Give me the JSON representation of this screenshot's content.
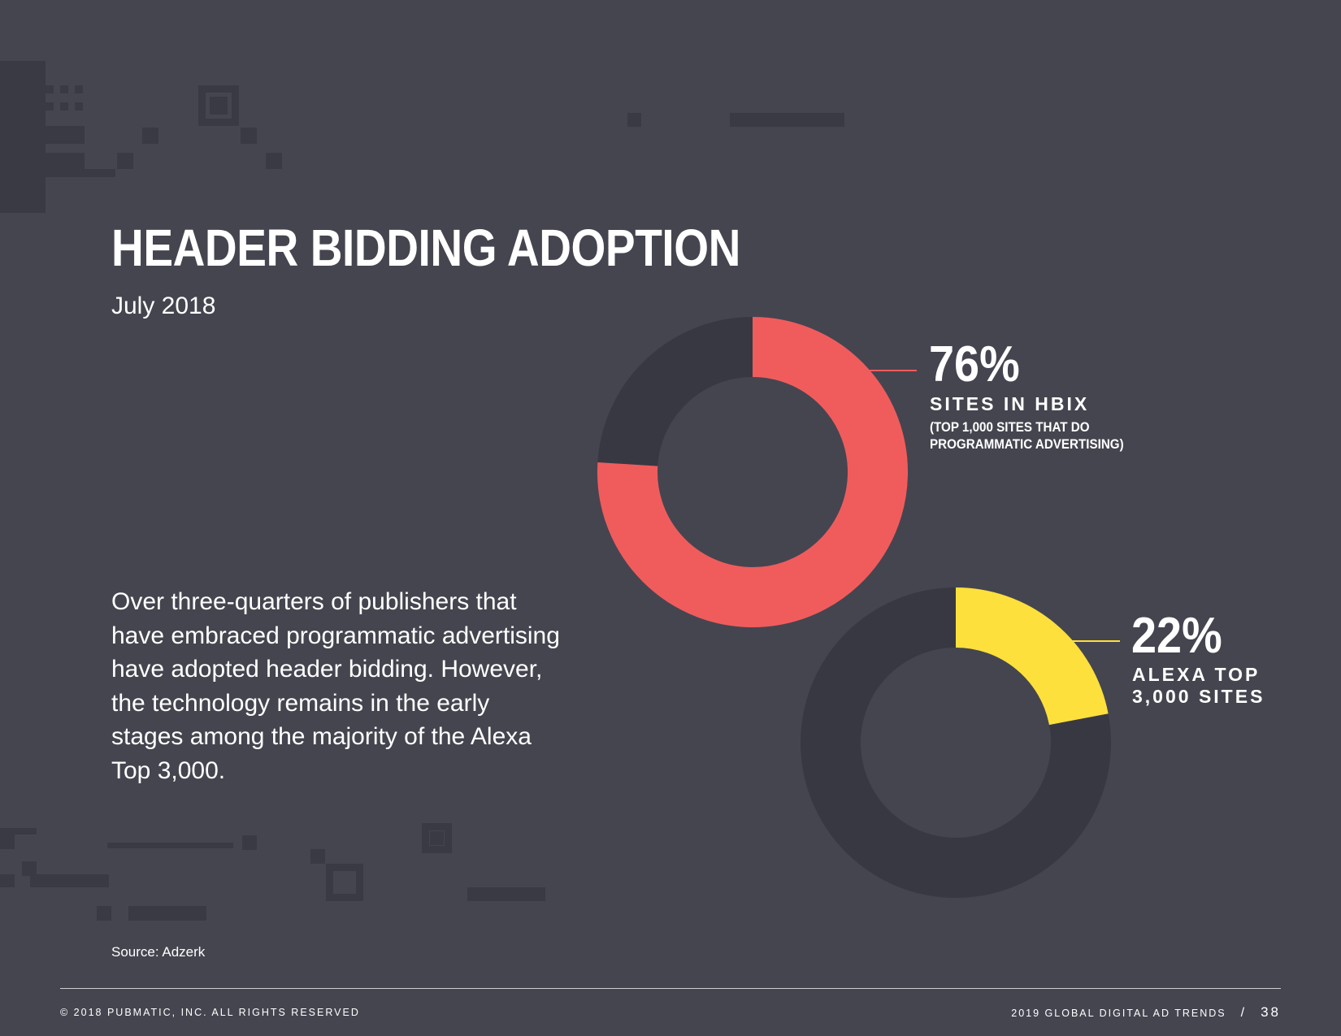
{
  "header": {
    "title": "HEADER BIDDING ADOPTION",
    "subtitle": "July 2018"
  },
  "body": {
    "paragraph": "Over three-quarters of publishers that have embraced programmatic advertising have adopted header bidding. However, the technology remains in the early stages among the majority of the Alexa Top 3,000."
  },
  "source": "Source: Adzerk",
  "footer": {
    "copyright": "© 2018 PUBMATIC, INC. ALL RIGHTS RESERVED",
    "report": "2019 GLOBAL DIGITAL AD TRENDS",
    "separator": "/",
    "page": "38"
  },
  "colors": {
    "background": "#454550",
    "track": "#383843",
    "red": "#f05c5c",
    "yellow": "#fde03b",
    "text": "#ffffff"
  },
  "chart_data": [
    {
      "type": "pie",
      "style": "donut",
      "value_label": "76%",
      "label": "SITES IN HBIX",
      "sublabel_lines": [
        "(TOP 1,000 SITES THAT DO",
        "PROGRAMMATIC ADVERTISING)"
      ],
      "slices": [
        {
          "label": "SITES IN HBIX",
          "value": 76,
          "color": "#f05c5c"
        },
        {
          "label": "",
          "value": 24,
          "color": "#383843"
        }
      ]
    },
    {
      "type": "pie",
      "style": "donut",
      "value_label": "22%",
      "label_lines": [
        "ALEXA TOP",
        "3,000 SITES"
      ],
      "slices": [
        {
          "label": "ALEXA TOP 3,000 SITES",
          "value": 22,
          "color": "#fde03b"
        },
        {
          "label": "",
          "value": 78,
          "color": "#383843"
        }
      ]
    }
  ]
}
